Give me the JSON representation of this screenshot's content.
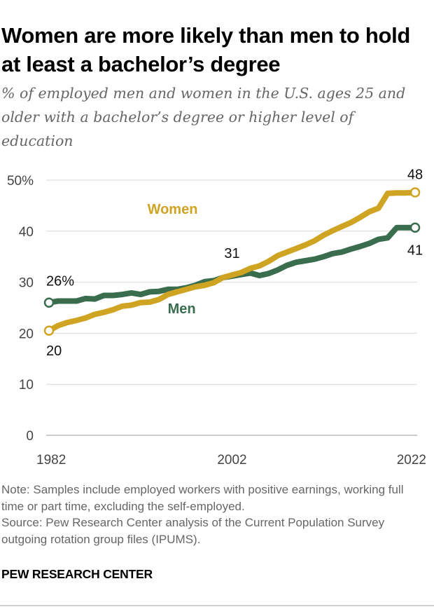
{
  "header": {
    "title": "Women are more likely than men to hold at least a bachelor’s degree",
    "subtitle": "% of employed men and women in the U.S. ages 25 and older with a bachelor’s degree or higher level of education"
  },
  "footer": {
    "note": "Note: Samples include employed workers with positive earnings, working full time or part time, excluding the self-employed.",
    "source": "Source: Pew Research Center analysis of the Current Population Survey outgoing rotation group files (IPUMS).",
    "brand": "PEW RESEARCH CENTER"
  },
  "chart_data": {
    "type": "line",
    "title": "Women are more likely than men to hold at least a bachelor’s degree",
    "subtitle": "% of employed men and women in the U.S. ages 25 and older with a bachelor’s degree or higher level of education",
    "xlabel": "",
    "ylabel": "",
    "x": [
      1982,
      1983,
      1984,
      1985,
      1986,
      1987,
      1988,
      1989,
      1990,
      1991,
      1992,
      1993,
      1994,
      1995,
      1996,
      1997,
      1998,
      1999,
      2000,
      2001,
      2002,
      2003,
      2004,
      2005,
      2006,
      2007,
      2008,
      2009,
      2010,
      2011,
      2012,
      2013,
      2014,
      2015,
      2016,
      2017,
      2018,
      2019,
      2020,
      2021,
      2022
    ],
    "xlim": [
      1982,
      2022
    ],
    "ylim": [
      0,
      50
    ],
    "x_ticks": [
      {
        "value": 1982,
        "label": "1982"
      },
      {
        "value": 2002,
        "label": "2002"
      },
      {
        "value": 2022,
        "label": "2022"
      }
    ],
    "y_ticks": [
      {
        "value": 0,
        "label": "0"
      },
      {
        "value": 10,
        "label": "10"
      },
      {
        "value": 20,
        "label": "20"
      },
      {
        "value": 30,
        "label": "30"
      },
      {
        "value": 40,
        "label": "40"
      },
      {
        "value": 50,
        "label": "50%"
      }
    ],
    "grid": true,
    "series": [
      {
        "name": "Women",
        "color": "#CFA422",
        "values": [
          20.5,
          21.5,
          22.1,
          22.5,
          23.0,
          23.7,
          24.1,
          24.6,
          25.3,
          25.5,
          26.0,
          26.1,
          26.6,
          27.6,
          28.1,
          28.6,
          29.1,
          29.4,
          29.9,
          30.9,
          31.4,
          31.9,
          32.7,
          33.2,
          34.1,
          35.2,
          35.9,
          36.6,
          37.3,
          38.1,
          39.2,
          40.1,
          40.9,
          41.7,
          42.7,
          43.8,
          44.5,
          47.4,
          47.5,
          47.5,
          47.6
        ],
        "data_labels": [
          {
            "x": 1982,
            "text": "20"
          },
          {
            "x": 2022,
            "text": "48"
          }
        ]
      },
      {
        "name": "Men",
        "color": "#3A6C4E",
        "values": [
          26.0,
          26.3,
          26.3,
          26.3,
          26.8,
          26.7,
          27.4,
          27.4,
          27.6,
          27.9,
          27.6,
          28.1,
          28.2,
          28.6,
          28.6,
          28.9,
          29.4,
          30.1,
          30.3,
          30.9,
          31.2,
          31.5,
          31.8,
          31.3,
          31.7,
          32.4,
          33.3,
          33.9,
          34.2,
          34.5,
          35.0,
          35.6,
          35.9,
          36.5,
          37.0,
          37.6,
          38.4,
          38.7,
          40.7,
          40.7,
          40.7
        ],
        "data_labels": [
          {
            "x": 1982,
            "text": "26%"
          },
          {
            "x": 2002,
            "text": "31"
          },
          {
            "x": 2022,
            "text": "41"
          }
        ]
      }
    ]
  }
}
